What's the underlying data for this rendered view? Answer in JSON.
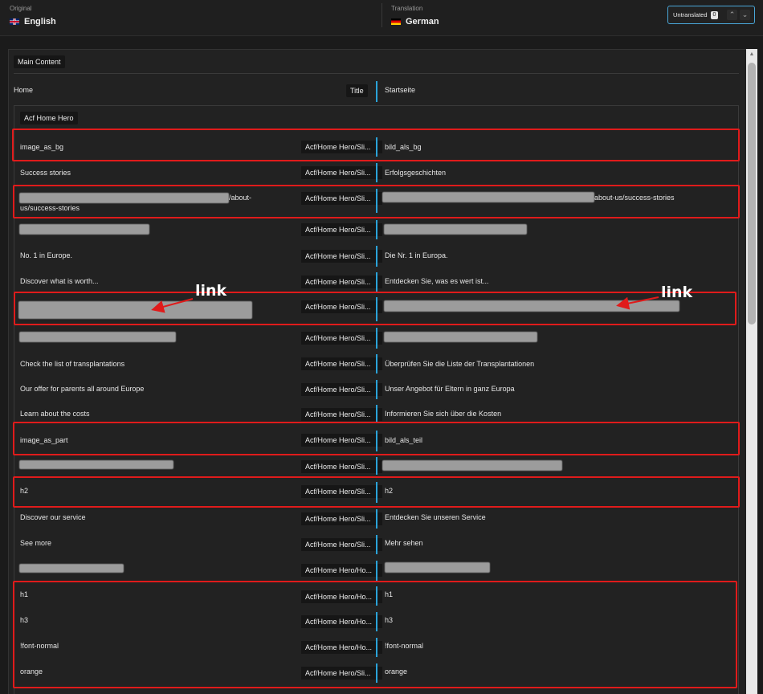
{
  "header": {
    "original_caption": "Original",
    "original_language": "English",
    "translation_caption": "Translation",
    "translation_language": "German",
    "filter_label": "Untranslated",
    "filter_count": "0"
  },
  "section": {
    "label": "Main Content",
    "home": {
      "source": "Home",
      "type": "Title",
      "target": "Startseite"
    },
    "group_label": "Acf Home Hero"
  },
  "rows": [
    {
      "source": "image_as_bg",
      "key": "Acf/Home Hero/Sli...",
      "target": "bild_als_bg"
    },
    {
      "source": "Success stories",
      "key": "Acf/Home Hero/Sli...",
      "target": "Erfolgsgeschichten"
    },
    {
      "source_suffix": "/about-",
      "source_line2": "us/success-stories",
      "key": "Acf/Home Hero/Sli...",
      "target_suffix": "about-us/success-stories"
    },
    {
      "key": "Acf/Home Hero/Sli..."
    },
    {
      "source": "No. 1 in Europe.",
      "key": "Acf/Home Hero/Sli...",
      "target": "Die Nr. 1 in Europa."
    },
    {
      "source": "Discover what is worth...",
      "key": "Acf/Home Hero/Sli...",
      "target": "Entdecken Sie, was es wert ist..."
    },
    {
      "key": "Acf/Home Hero/Sli..."
    },
    {
      "key": "Acf/Home Hero/Sli..."
    },
    {
      "source": "Check the list of transplantations",
      "key": "Acf/Home Hero/Sli...",
      "target": "Überprüfen Sie die Liste der Transplantationen"
    },
    {
      "source": "Our offer for parents all around Europe",
      "key": "Acf/Home Hero/Sli...",
      "target": "Unser Angebot für Eltern in ganz Europa"
    },
    {
      "source": "Learn about the costs",
      "key": "Acf/Home Hero/Sli...",
      "target": "Informieren Sie sich über die Kosten"
    },
    {
      "source": "image_as_part",
      "key": "Acf/Home Hero/Sli...",
      "target": "bild_als_teil"
    },
    {
      "key": "Acf/Home Hero/Sli..."
    },
    {
      "source": "h2",
      "key": "Acf/Home Hero/Sli...",
      "target": "h2"
    },
    {
      "source": "Discover our service",
      "key": "Acf/Home Hero/Sli...",
      "target": "Entdecken Sie unseren Service"
    },
    {
      "source": "See more",
      "key": "Acf/Home Hero/Sli...",
      "target": "Mehr sehen"
    },
    {
      "key": "Acf/Home Hero/Ho..."
    },
    {
      "source": "h1",
      "key": "Acf/Home Hero/Ho...",
      "target": "h1"
    },
    {
      "source": "h3",
      "key": "Acf/Home Hero/Ho...",
      "target": "h3"
    },
    {
      "source": "!font-normal",
      "key": "Acf/Home Hero/Ho...",
      "target": "!font-normal"
    },
    {
      "source": "orange",
      "key": "Acf/Home Hero/Sli...",
      "target": "orange"
    }
  ],
  "annotations": {
    "left_label": "link",
    "right_label": "link",
    "color": "#e01b1b"
  },
  "colors": {
    "accent": "#2aa3d9",
    "highlight": "#e01b1b",
    "background": "#222222"
  }
}
